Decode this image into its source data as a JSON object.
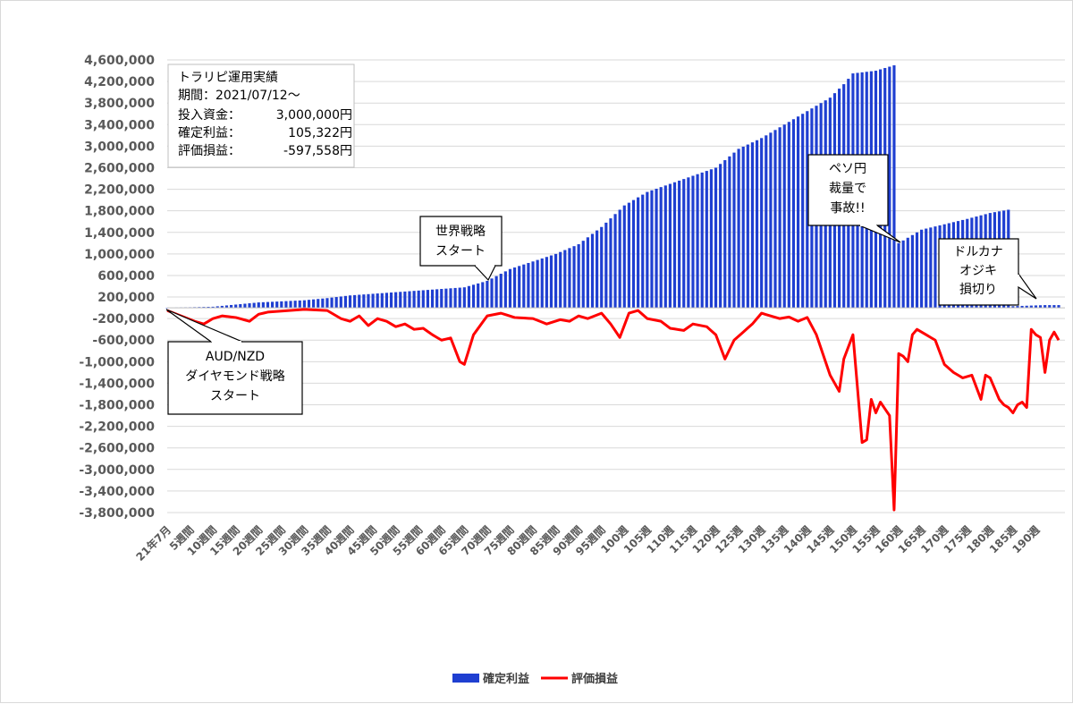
{
  "chart_data": {
    "type": "bar+line",
    "title": "",
    "ylim": [
      -3800000,
      4600000
    ],
    "y_ticks": [
      "4,600,000",
      "4,200,000",
      "3,800,000",
      "3,400,000",
      "3,000,000",
      "2,600,000",
      "2,200,000",
      "1,800,000",
      "1,400,000",
      "1,000,000",
      "600,000",
      "200,000",
      "-200,000",
      "-600,000",
      "-1,000,000",
      "-1,400,000",
      "-1,800,000",
      "-2,200,000",
      "-2,600,000",
      "-3,000,000",
      "-3,400,000",
      "-3,800,000"
    ],
    "x_tick_labels": [
      "21年7月",
      "5週間",
      "10週間",
      "15週間",
      "20週間",
      "25週間",
      "30週間",
      "35週間",
      "40週間",
      "45週間",
      "50週間",
      "55週間",
      "60週間",
      "65週間",
      "70週間",
      "75週間",
      "80週間",
      "85週間",
      "90週間",
      "95週間",
      "100週",
      "105週",
      "110週",
      "115週",
      "120週",
      "125週",
      "130週",
      "135週",
      "140週",
      "145週",
      "150週",
      "155週",
      "160週",
      "165週",
      "170週",
      "175週",
      "180週",
      "185週",
      "190週"
    ],
    "series": [
      {
        "name": "確定利益",
        "type": "bar",
        "color": "#1f3fd1",
        "keypoints": [
          [
            0,
            0
          ],
          [
            5,
            10000
          ],
          [
            10,
            20000
          ],
          [
            15,
            60000
          ],
          [
            20,
            100000
          ],
          [
            25,
            120000
          ],
          [
            30,
            140000
          ],
          [
            35,
            180000
          ],
          [
            40,
            230000
          ],
          [
            45,
            260000
          ],
          [
            50,
            290000
          ],
          [
            55,
            320000
          ],
          [
            60,
            350000
          ],
          [
            65,
            380000
          ],
          [
            70,
            500000
          ],
          [
            75,
            720000
          ],
          [
            80,
            860000
          ],
          [
            85,
            1000000
          ],
          [
            90,
            1180000
          ],
          [
            95,
            1500000
          ],
          [
            100,
            1900000
          ],
          [
            105,
            2150000
          ],
          [
            110,
            2300000
          ],
          [
            115,
            2450000
          ],
          [
            120,
            2600000
          ],
          [
            125,
            2950000
          ],
          [
            130,
            3150000
          ],
          [
            135,
            3400000
          ],
          [
            140,
            3650000
          ],
          [
            145,
            3900000
          ],
          [
            148,
            4150000
          ],
          [
            150,
            4350000
          ],
          [
            155,
            4400000
          ],
          [
            159,
            4500000
          ],
          [
            160,
            1200000
          ],
          [
            165,
            1450000
          ],
          [
            170,
            1550000
          ],
          [
            175,
            1650000
          ],
          [
            180,
            1760000
          ],
          [
            184,
            1820000
          ],
          [
            185,
            30000
          ],
          [
            192,
            50000
          ]
        ]
      },
      {
        "name": "評価損益",
        "type": "line",
        "color": "#ff0000",
        "keypoints": [
          [
            0,
            -50000
          ],
          [
            3,
            -150000
          ],
          [
            6,
            -250000
          ],
          [
            8,
            -300000
          ],
          [
            10,
            -200000
          ],
          [
            12,
            -150000
          ],
          [
            15,
            -180000
          ],
          [
            18,
            -250000
          ],
          [
            20,
            -120000
          ],
          [
            22,
            -80000
          ],
          [
            25,
            -60000
          ],
          [
            30,
            -30000
          ],
          [
            35,
            -50000
          ],
          [
            38,
            -200000
          ],
          [
            40,
            -250000
          ],
          [
            42,
            -150000
          ],
          [
            44,
            -330000
          ],
          [
            46,
            -200000
          ],
          [
            48,
            -250000
          ],
          [
            50,
            -350000
          ],
          [
            52,
            -300000
          ],
          [
            54,
            -400000
          ],
          [
            56,
            -380000
          ],
          [
            58,
            -500000
          ],
          [
            60,
            -600000
          ],
          [
            62,
            -560000
          ],
          [
            64,
            -1000000
          ],
          [
            65,
            -1050000
          ],
          [
            67,
            -500000
          ],
          [
            70,
            -150000
          ],
          [
            73,
            -100000
          ],
          [
            76,
            -180000
          ],
          [
            80,
            -200000
          ],
          [
            83,
            -300000
          ],
          [
            86,
            -220000
          ],
          [
            88,
            -250000
          ],
          [
            90,
            -150000
          ],
          [
            92,
            -200000
          ],
          [
            95,
            -100000
          ],
          [
            97,
            -300000
          ],
          [
            99,
            -550000
          ],
          [
            101,
            -100000
          ],
          [
            103,
            -50000
          ],
          [
            105,
            -200000
          ],
          [
            108,
            -250000
          ],
          [
            110,
            -380000
          ],
          [
            113,
            -420000
          ],
          [
            115,
            -300000
          ],
          [
            118,
            -350000
          ],
          [
            120,
            -500000
          ],
          [
            122,
            -950000
          ],
          [
            124,
            -600000
          ],
          [
            126,
            -450000
          ],
          [
            128,
            -300000
          ],
          [
            130,
            -100000
          ],
          [
            132,
            -150000
          ],
          [
            134,
            -200000
          ],
          [
            136,
            -170000
          ],
          [
            138,
            -250000
          ],
          [
            140,
            -180000
          ],
          [
            142,
            -500000
          ],
          [
            144,
            -1000000
          ],
          [
            145,
            -1250000
          ],
          [
            147,
            -1550000
          ],
          [
            148,
            -950000
          ],
          [
            150,
            -500000
          ],
          [
            152,
            -2500000
          ],
          [
            153,
            -2450000
          ],
          [
            154,
            -1700000
          ],
          [
            155,
            -1950000
          ],
          [
            156,
            -1750000
          ],
          [
            158,
            -2000000
          ],
          [
            159,
            -3750000
          ],
          [
            160,
            -850000
          ],
          [
            161,
            -900000
          ],
          [
            162,
            -1000000
          ],
          [
            163,
            -500000
          ],
          [
            164,
            -400000
          ],
          [
            166,
            -500000
          ],
          [
            168,
            -600000
          ],
          [
            170,
            -1050000
          ],
          [
            172,
            -1200000
          ],
          [
            174,
            -1300000
          ],
          [
            176,
            -1250000
          ],
          [
            178,
            -1700000
          ],
          [
            179,
            -1250000
          ],
          [
            180,
            -1300000
          ],
          [
            182,
            -1700000
          ],
          [
            183,
            -1800000
          ],
          [
            184,
            -1850000
          ],
          [
            185,
            -1950000
          ],
          [
            186,
            -1800000
          ],
          [
            187,
            -1750000
          ],
          [
            188,
            -1850000
          ],
          [
            189,
            -400000
          ],
          [
            190,
            -500000
          ],
          [
            191,
            -550000
          ],
          [
            192,
            -1200000
          ],
          [
            193,
            -600000
          ],
          [
            194,
            -450000
          ],
          [
            195,
            -600000
          ]
        ]
      }
    ],
    "legend": [
      "確定利益",
      "評価損益"
    ],
    "legend_position": "bottom"
  },
  "info_box": {
    "line1": "トラリピ運用実績",
    "line2": "期間：2021/07/12～",
    "line3_label": "投入資金：",
    "line3_value": "3,000,000円",
    "line4_label": "確定利益：",
    "line4_value": "105,322円",
    "line5_label": "評価損益：",
    "line5_value": "-597,558円"
  },
  "annotations": {
    "audnzd": [
      "AUD/NZD",
      "ダイヤモンド戦略",
      "スタート"
    ],
    "world": [
      "世界戦略",
      "スタート"
    ],
    "peso": [
      "ペソ円",
      "裁量で",
      "事故!!"
    ],
    "dollar": [
      "ドルカナ",
      "オジキ",
      "損切り"
    ]
  }
}
